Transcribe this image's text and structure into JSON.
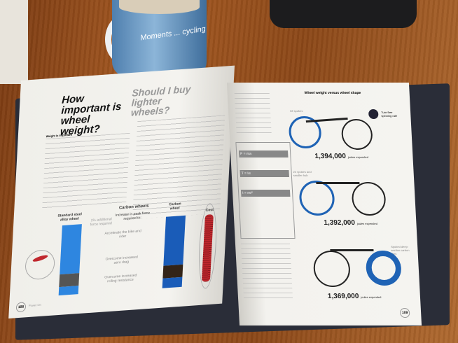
{
  "mug": {
    "text": "Moments ... cycling"
  },
  "left_page": {
    "title": "How important is wheel weight?",
    "subtitle": "Should I buy lighter wheels?",
    "lead": "Weight is important",
    "chart": {
      "title": "Carbon wheels",
      "subtitle": "Increase in peak force required to:",
      "standard_label": "Standard steel alloy wheel",
      "carbon_label": "Carbon wheel",
      "cost_label": "Cost",
      "note": "1% additional force required",
      "annotations": [
        "Accelerate the bike and rider",
        "Overcome increased aero drag",
        "Overcome increased rolling resistance"
      ]
    },
    "page_number": "108",
    "footer": "Power On"
  },
  "right_page": {
    "heading": "Wheel weight versus wheel shape",
    "bikes": [
      {
        "label": "32 spokes",
        "joules": "1,394,000",
        "unit": "joules expended"
      },
      {
        "label": "24 spokes and smaller hub",
        "joules": "1,392,000",
        "unit": "joules expended"
      },
      {
        "label": "Spoked deep-section carbon rims",
        "joules": "1,369,000",
        "unit": "joules expended"
      }
    ],
    "legend": "Turn-free spinning rate",
    "formulas": [
      "F = ma",
      "T = Iα",
      "I = mr²"
    ],
    "page_number": "109"
  },
  "colors": {
    "wheel_blue": "#1f63b5",
    "coin_red": "#c0282e",
    "table": "#94501c"
  }
}
